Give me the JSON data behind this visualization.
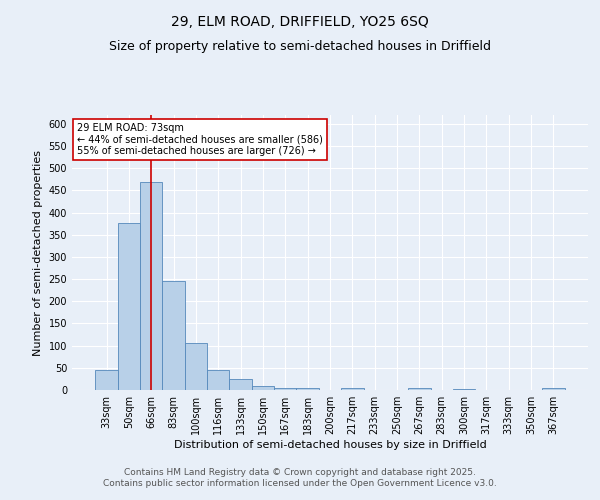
{
  "title_line1": "29, ELM ROAD, DRIFFIELD, YO25 6SQ",
  "title_line2": "Size of property relative to semi-detached houses in Driffield",
  "xlabel": "Distribution of semi-detached houses by size in Driffield",
  "ylabel": "Number of semi-detached properties",
  "categories": [
    "33sqm",
    "50sqm",
    "66sqm",
    "83sqm",
    "100sqm",
    "116sqm",
    "133sqm",
    "150sqm",
    "167sqm",
    "183sqm",
    "200sqm",
    "217sqm",
    "233sqm",
    "250sqm",
    "267sqm",
    "283sqm",
    "300sqm",
    "317sqm",
    "333sqm",
    "350sqm",
    "367sqm"
  ],
  "values": [
    46,
    376,
    470,
    245,
    105,
    44,
    25,
    8,
    5,
    5,
    0,
    5,
    0,
    0,
    4,
    0,
    3,
    0,
    0,
    0,
    4
  ],
  "bar_color": "#b8d0e8",
  "bar_edge_color": "#5588bb",
  "vline_x": 2,
  "vline_color": "#cc0000",
  "annotation_title": "29 ELM ROAD: 73sqm",
  "annotation_line1": "← 44% of semi-detached houses are smaller (586)",
  "annotation_line2": "55% of semi-detached houses are larger (726) →",
  "annotation_box_color": "#ffffff",
  "annotation_box_edge": "#cc0000",
  "ylim": [
    0,
    620
  ],
  "yticks": [
    0,
    50,
    100,
    150,
    200,
    250,
    300,
    350,
    400,
    450,
    500,
    550,
    600
  ],
  "footer_line1": "Contains HM Land Registry data © Crown copyright and database right 2025.",
  "footer_line2": "Contains public sector information licensed under the Open Government Licence v3.0.",
  "bg_color": "#e8eff8",
  "plot_bg_color": "#e8eff8",
  "title_fontsize": 10,
  "subtitle_fontsize": 9,
  "axis_label_fontsize": 8,
  "tick_fontsize": 7,
  "footer_fontsize": 6.5
}
